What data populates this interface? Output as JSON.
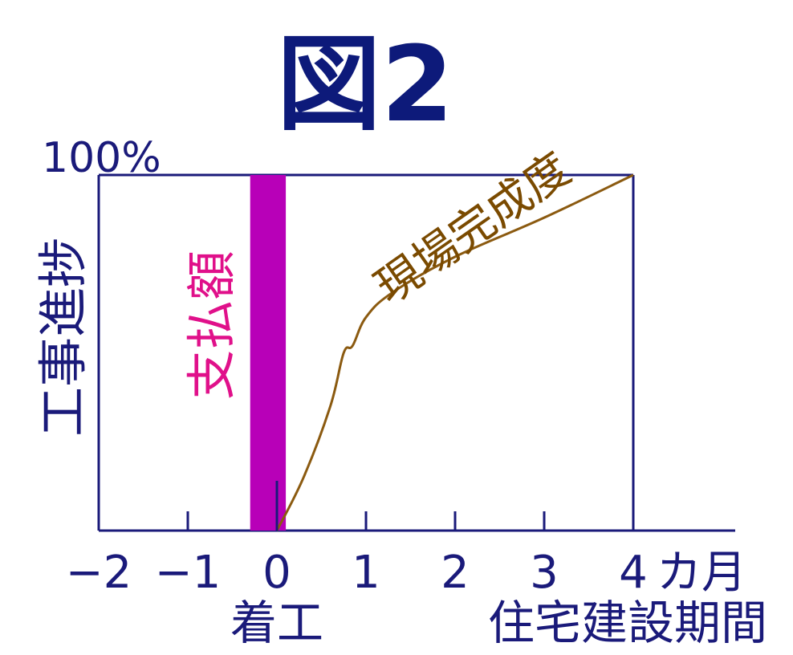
{
  "title": "図2",
  "colors": {
    "axis": "#1a1a7a",
    "title": "#0d1a7a",
    "bar": "#b800b8",
    "bar_label": "#e0108a",
    "curve": "#8b5a10",
    "curve_label": "#7a4a00"
  },
  "chart_data": {
    "type": "line",
    "title": "図2",
    "xlabel": "住宅建設期間",
    "ylabel": "工事進捗",
    "x_ticks": [
      "−2",
      "−1",
      "0",
      "1",
      "2",
      "3",
      "4"
    ],
    "x_tick_values": [
      -2,
      -1,
      0,
      1,
      2,
      3,
      4
    ],
    "x_unit": "カ月",
    "x_zero_label": "着工",
    "xlim": [
      -2,
      4
    ],
    "y_top_label": "100%",
    "ylim": [
      0,
      100
    ],
    "grid": false,
    "series": [
      {
        "name": "現場完成度",
        "type": "line",
        "x": [
          0,
          0.3,
          0.6,
          0.75,
          0.85,
          1.0,
          1.3,
          2.0,
          3.0,
          4.0
        ],
        "y": [
          0,
          15,
          35,
          50,
          52,
          60,
          67,
          77,
          88,
          100
        ]
      },
      {
        "name": "支払額",
        "type": "bar",
        "x_start": -0.3,
        "x_end": 0.1,
        "value": 100
      }
    ]
  }
}
